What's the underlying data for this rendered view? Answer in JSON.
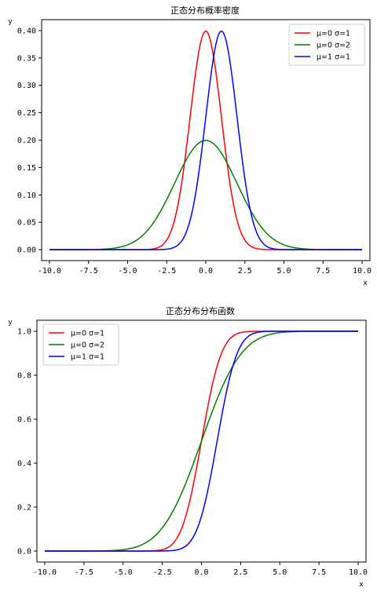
{
  "chart_data": [
    {
      "type": "line",
      "title": "正态分布概率密度",
      "xlabel": "x",
      "ylabel": "y",
      "xlim": [
        -10.5,
        10.5
      ],
      "ylim": [
        -0.02,
        0.42
      ],
      "xticks": [
        -10,
        -7.5,
        -5,
        -2.5,
        0,
        2.5,
        5,
        7.5,
        10
      ],
      "xtick_labels": [
        "-10.0",
        "-7.5",
        "-5.0",
        "-2.5",
        "0.0",
        "2.5",
        "5.0",
        "7.5",
        "10.0"
      ],
      "yticks": [
        0,
        0.05,
        0.1,
        0.15,
        0.2,
        0.25,
        0.3,
        0.35,
        0.4
      ],
      "ytick_labels": [
        "0.00",
        "0.05",
        "0.10",
        "0.15",
        "0.20",
        "0.25",
        "0.30",
        "0.35",
        "0.40"
      ],
      "legend_position": "top-right",
      "function": "pdf",
      "x_range": [
        -10,
        10
      ],
      "series": [
        {
          "name": "μ=0  σ=1",
          "mu": 0,
          "sigma": 1,
          "color": "#ff0000"
        },
        {
          "name": "μ=0  σ=2",
          "mu": 0,
          "sigma": 2,
          "color": "#008000"
        },
        {
          "name": "μ=1  σ=1",
          "mu": 1,
          "sigma": 1,
          "color": "#0000ff"
        }
      ]
    },
    {
      "type": "line",
      "title": "正态分布分布函数",
      "xlabel": "x",
      "ylabel": "y",
      "xlim": [
        -10.5,
        10.5
      ],
      "ylim": [
        -0.05,
        1.05
      ],
      "xticks": [
        -10,
        -7.5,
        -5,
        -2.5,
        0,
        2.5,
        5,
        7.5,
        10
      ],
      "xtick_labels": [
        "-10.0",
        "-7.5",
        "-5.0",
        "-2.5",
        "0.0",
        "2.5",
        "5.0",
        "7.5",
        "10.0"
      ],
      "yticks": [
        0,
        0.2,
        0.4,
        0.6,
        0.8,
        1.0
      ],
      "ytick_labels": [
        "0.0",
        "0.2",
        "0.4",
        "0.6",
        "0.8",
        "1.0"
      ],
      "legend_position": "top-left",
      "function": "cdf",
      "x_range": [
        -10,
        10
      ],
      "series": [
        {
          "name": "μ=0  σ=1",
          "mu": 0,
          "sigma": 1,
          "color": "#ff0000"
        },
        {
          "name": "μ=0  σ=2",
          "mu": 0,
          "sigma": 2,
          "color": "#008000"
        },
        {
          "name": "μ=1  σ=1",
          "mu": 1,
          "sigma": 1,
          "color": "#0000ff"
        }
      ]
    }
  ]
}
